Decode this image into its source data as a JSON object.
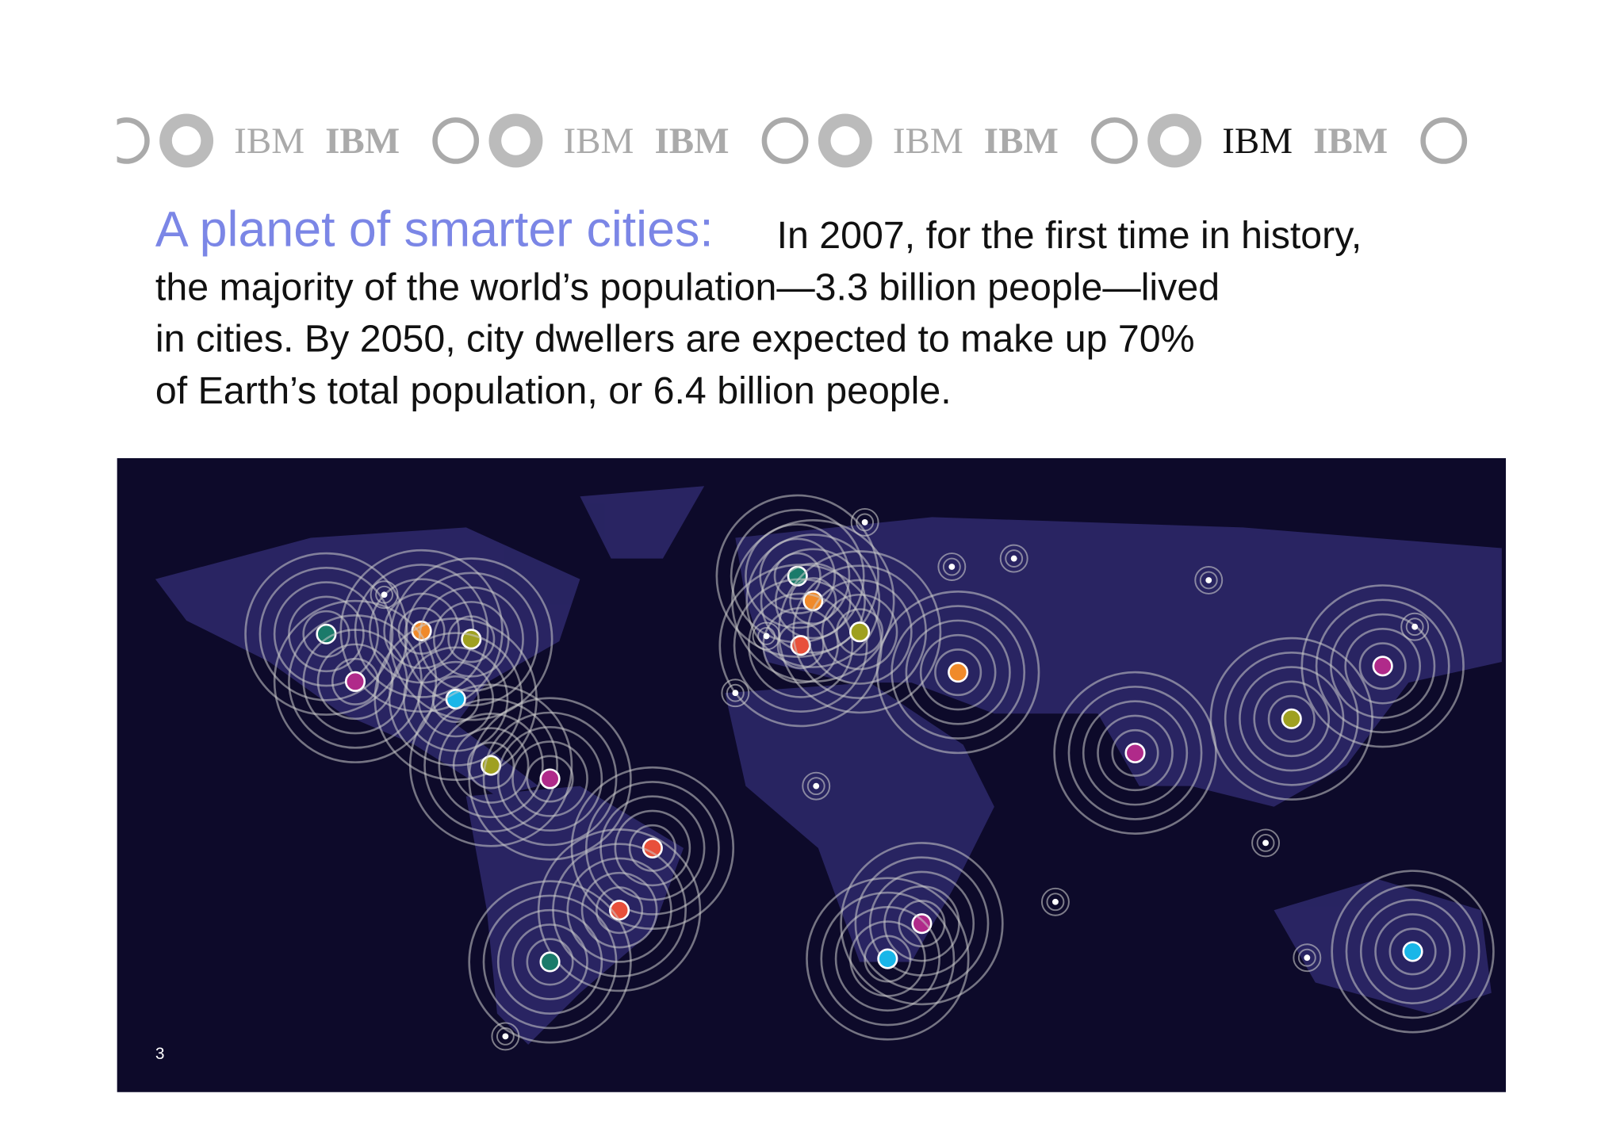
{
  "logo": "IBM",
  "slide": {
    "title": "A planet of smarter cities:",
    "body_lines": [
      "In 2007, for the first time in history,",
      "the majority of the world’s population—3.3 billion people—lived",
      "in cities. By 2050, city dwellers are expected to make up 70%",
      "of Earth’s total population, or 6.4 billion people."
    ],
    "page_number": "3"
  }
}
